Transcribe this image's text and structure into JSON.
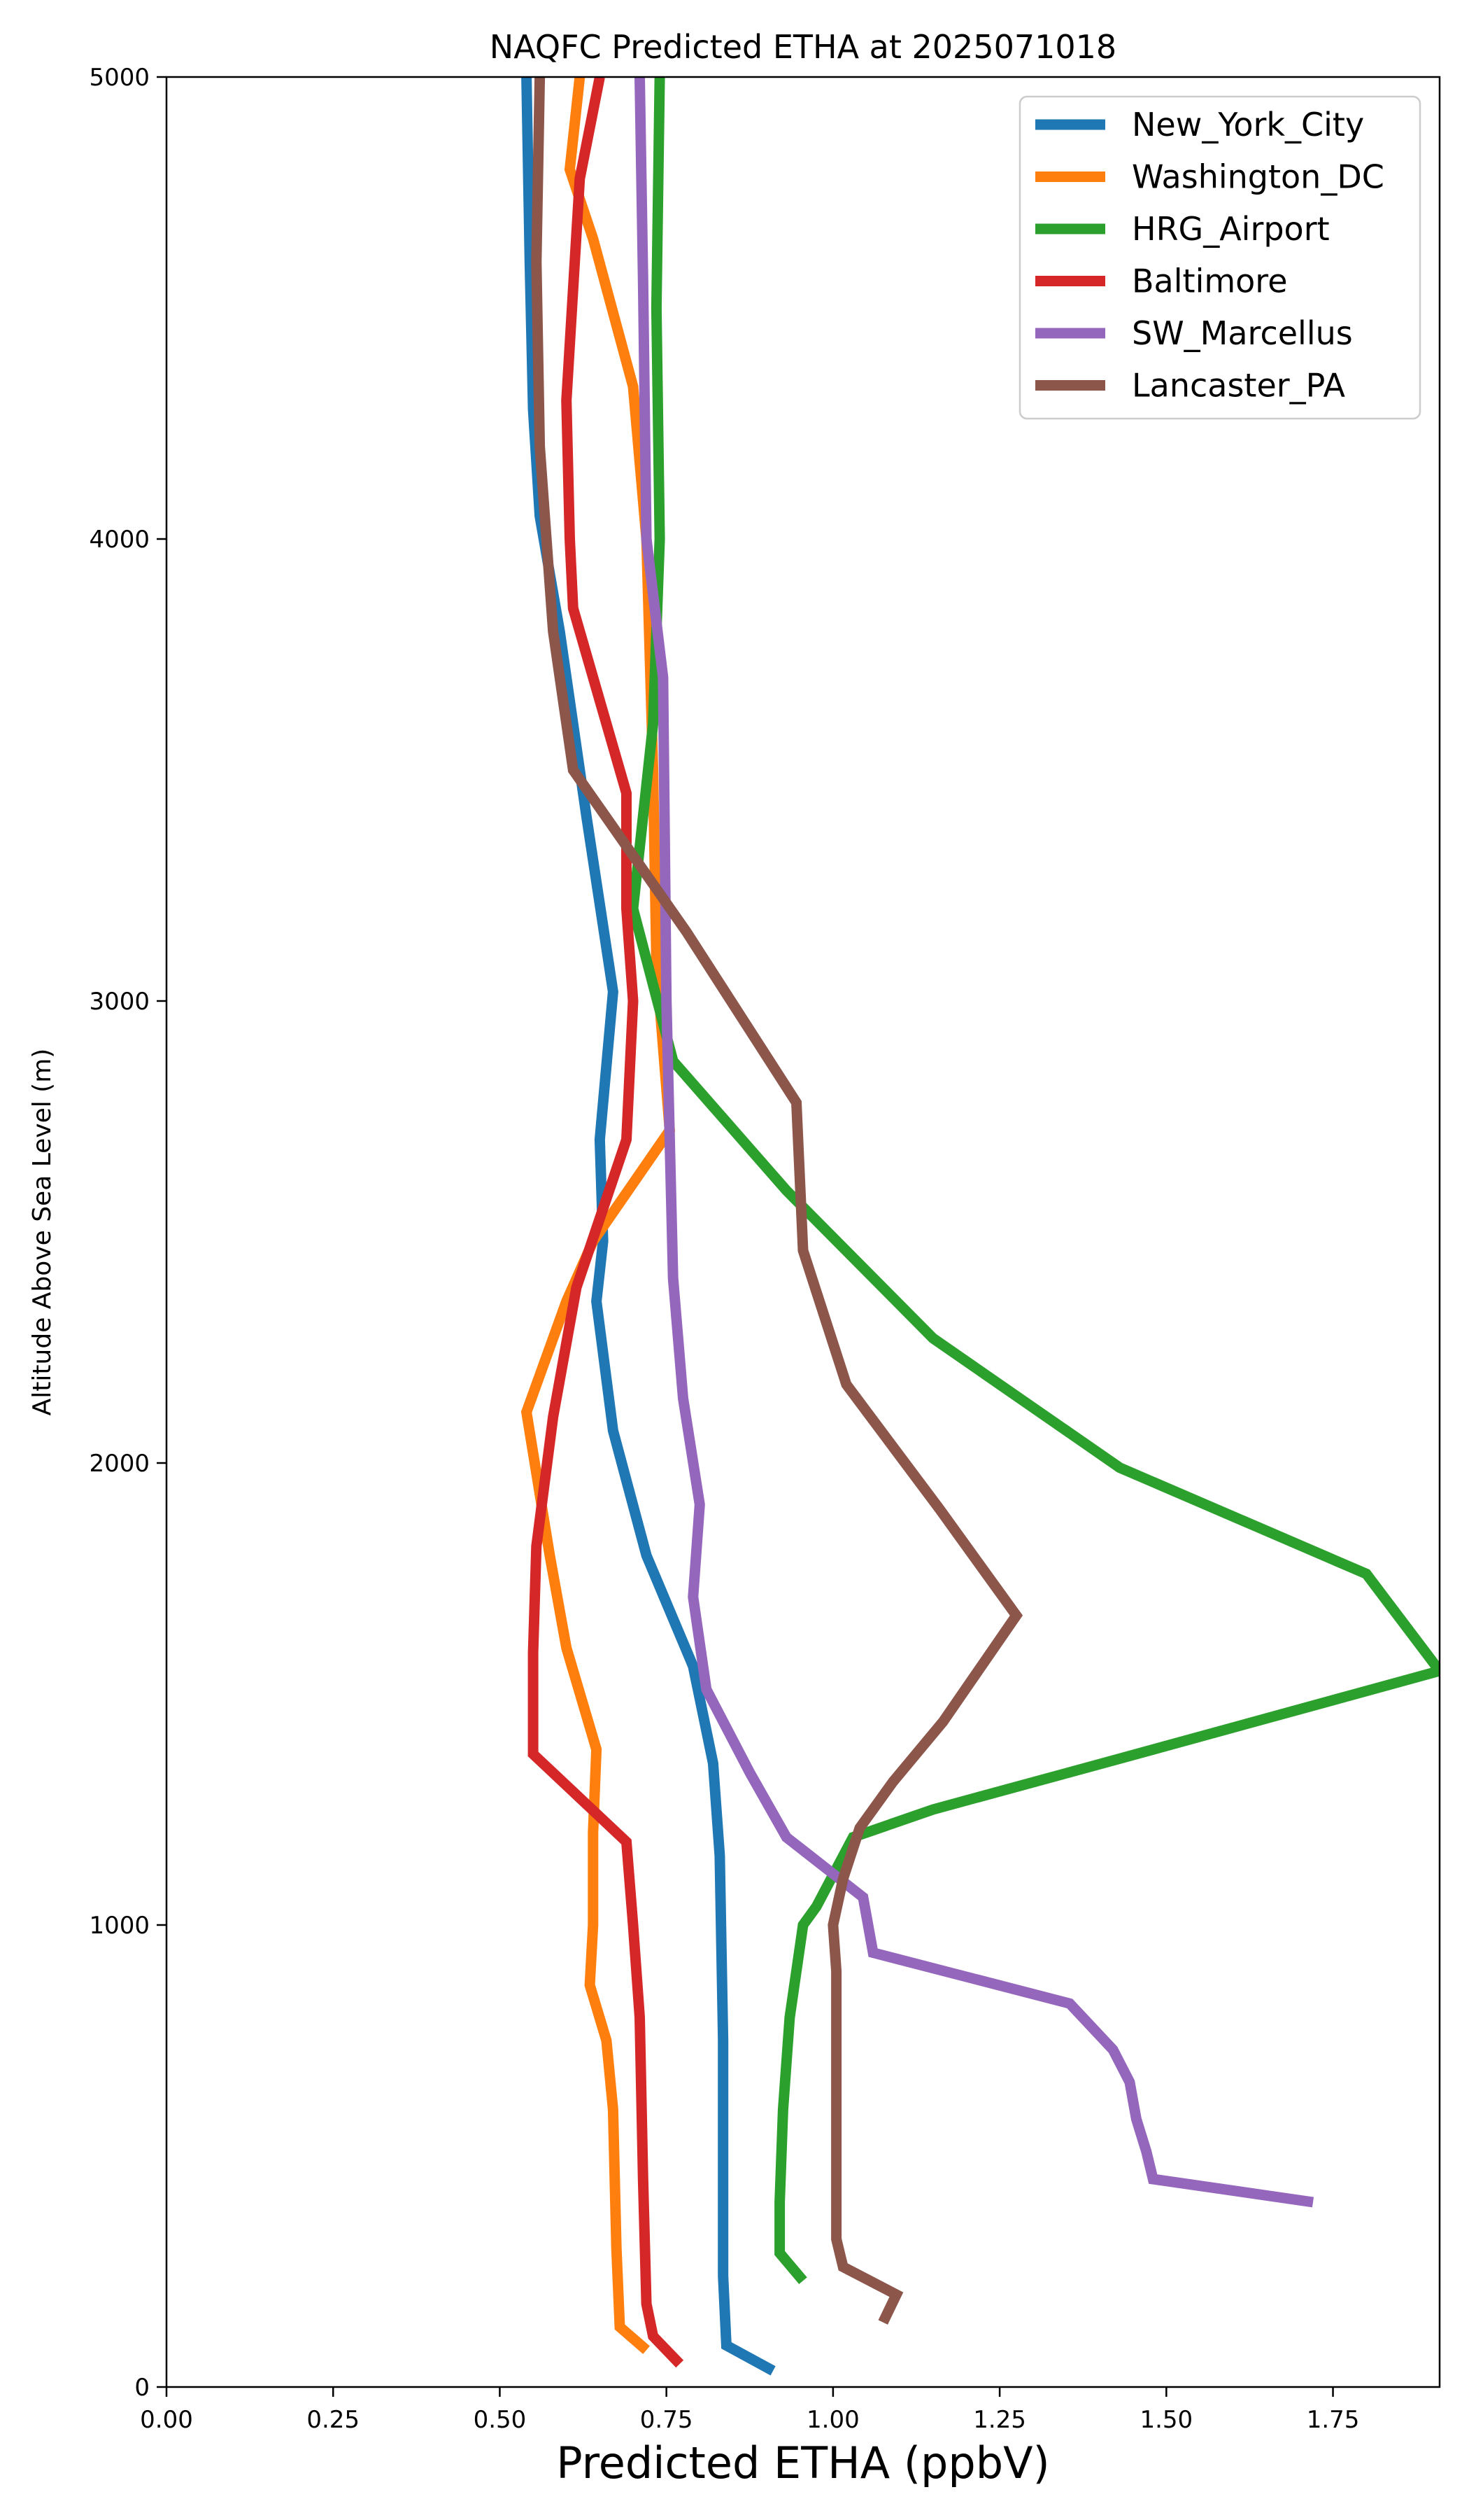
{
  "chart_data": {
    "type": "line",
    "title": "NAQFC Predicted ETHA at 2025071018",
    "xlabel": "Predicted ETHA (ppbV)",
    "ylabel": "Altitude Above Sea Level (m)",
    "xlim": [
      0,
      1.91
    ],
    "ylim": [
      0,
      5000
    ],
    "xticks": [
      "0.00",
      "0.25",
      "0.50",
      "0.75",
      "1.00",
      "1.25",
      "1.50",
      "1.75"
    ],
    "xtick_values": [
      0,
      0.25,
      0.5,
      0.75,
      1.0,
      1.25,
      1.5,
      1.75
    ],
    "yticks": [
      "0",
      "1000",
      "2000",
      "3000",
      "4000",
      "5000"
    ],
    "ytick_values": [
      0,
      1000,
      2000,
      3000,
      4000,
      5000
    ],
    "grid": false,
    "legend_position": "top-right",
    "series": [
      {
        "name": "New_York_City",
        "color": "#1f77b4",
        "points": [
          [
            0.91,
            35
          ],
          [
            0.84,
            90
          ],
          [
            0.835,
            240
          ],
          [
            0.835,
            750
          ],
          [
            0.83,
            1150
          ],
          [
            0.82,
            1350
          ],
          [
            0.79,
            1560
          ],
          [
            0.72,
            1800
          ],
          [
            0.67,
            2070
          ],
          [
            0.645,
            2350
          ],
          [
            0.655,
            2480
          ],
          [
            0.65,
            2700
          ],
          [
            0.67,
            3020
          ],
          [
            0.63,
            3400
          ],
          [
            0.59,
            3800
          ],
          [
            0.56,
            4050
          ],
          [
            0.55,
            4280
          ],
          [
            0.545,
            4600
          ],
          [
            0.54,
            5000
          ]
        ]
      },
      {
        "name": "Washington_DC",
        "color": "#ff7f0e",
        "points": [
          [
            0.72,
            80
          ],
          [
            0.68,
            130
          ],
          [
            0.675,
            300
          ],
          [
            0.67,
            600
          ],
          [
            0.66,
            750
          ],
          [
            0.635,
            870
          ],
          [
            0.64,
            1000
          ],
          [
            0.64,
            1200
          ],
          [
            0.645,
            1380
          ],
          [
            0.6,
            1600
          ],
          [
            0.575,
            1800
          ],
          [
            0.54,
            2110
          ],
          [
            0.6,
            2350
          ],
          [
            0.64,
            2480
          ],
          [
            0.755,
            2720
          ],
          [
            0.735,
            3080
          ],
          [
            0.73,
            3500
          ],
          [
            0.72,
            4000
          ],
          [
            0.7,
            4330
          ],
          [
            0.64,
            4650
          ],
          [
            0.605,
            4800
          ],
          [
            0.62,
            5000
          ]
        ]
      },
      {
        "name": "HRG_Airport",
        "color": "#2ca02c",
        "points": [
          [
            0.955,
            230
          ],
          [
            0.92,
            290
          ],
          [
            0.92,
            400
          ],
          [
            0.925,
            600
          ],
          [
            0.935,
            800
          ],
          [
            0.955,
            1000
          ],
          [
            0.975,
            1040
          ],
          [
            1.03,
            1190
          ],
          [
            1.15,
            1250
          ],
          [
            1.43,
            1360
          ],
          [
            1.91,
            1550
          ],
          [
            1.8,
            1760
          ],
          [
            1.43,
            1990
          ],
          [
            1.15,
            2270
          ],
          [
            0.93,
            2590
          ],
          [
            0.76,
            2870
          ],
          [
            0.7,
            3200
          ],
          [
            0.73,
            3600
          ],
          [
            0.74,
            4000
          ],
          [
            0.735,
            4500
          ],
          [
            0.74,
            5000
          ]
        ]
      },
      {
        "name": "Baltimore",
        "color": "#d62728",
        "points": [
          [
            0.77,
            50
          ],
          [
            0.73,
            110
          ],
          [
            0.72,
            180
          ],
          [
            0.715,
            450
          ],
          [
            0.71,
            800
          ],
          [
            0.7,
            1000
          ],
          [
            0.69,
            1180
          ],
          [
            0.55,
            1370
          ],
          [
            0.55,
            1590
          ],
          [
            0.555,
            1820
          ],
          [
            0.58,
            2100
          ],
          [
            0.615,
            2380
          ],
          [
            0.69,
            2700
          ],
          [
            0.7,
            3000
          ],
          [
            0.69,
            3200
          ],
          [
            0.69,
            3450
          ],
          [
            0.61,
            3850
          ],
          [
            0.605,
            4000
          ],
          [
            0.6,
            4300
          ],
          [
            0.62,
            4780
          ],
          [
            0.65,
            5000
          ]
        ]
      },
      {
        "name": "SW_Marcellus",
        "color": "#9467bd",
        "points": [
          [
            1.72,
            400
          ],
          [
            1.48,
            450
          ],
          [
            1.47,
            510
          ],
          [
            1.455,
            580
          ],
          [
            1.445,
            660
          ],
          [
            1.42,
            730
          ],
          [
            1.355,
            830
          ],
          [
            1.06,
            940
          ],
          [
            1.045,
            1060
          ],
          [
            0.93,
            1190
          ],
          [
            0.875,
            1330
          ],
          [
            0.81,
            1510
          ],
          [
            0.79,
            1710
          ],
          [
            0.8,
            1910
          ],
          [
            0.775,
            2140
          ],
          [
            0.76,
            2400
          ],
          [
            0.755,
            2700
          ],
          [
            0.75,
            3000
          ],
          [
            0.745,
            3700
          ],
          [
            0.72,
            4000
          ],
          [
            0.715,
            4560
          ],
          [
            0.71,
            5000
          ]
        ]
      },
      {
        "name": "Lancaster_PA",
        "color": "#8c564b",
        "points": [
          [
            1.075,
            140
          ],
          [
            1.095,
            200
          ],
          [
            1.015,
            260
          ],
          [
            1.005,
            320
          ],
          [
            1.005,
            600
          ],
          [
            1.005,
            900
          ],
          [
            1.0,
            1000
          ],
          [
            1.015,
            1100
          ],
          [
            1.04,
            1210
          ],
          [
            1.09,
            1310
          ],
          [
            1.165,
            1440
          ],
          [
            1.275,
            1670
          ],
          [
            1.16,
            1900
          ],
          [
            1.02,
            2170
          ],
          [
            0.955,
            2460
          ],
          [
            0.945,
            2780
          ],
          [
            0.78,
            3150
          ],
          [
            0.61,
            3500
          ],
          [
            0.58,
            3800
          ],
          [
            0.56,
            4200
          ],
          [
            0.555,
            4600
          ],
          [
            0.56,
            5000
          ]
        ]
      }
    ]
  }
}
